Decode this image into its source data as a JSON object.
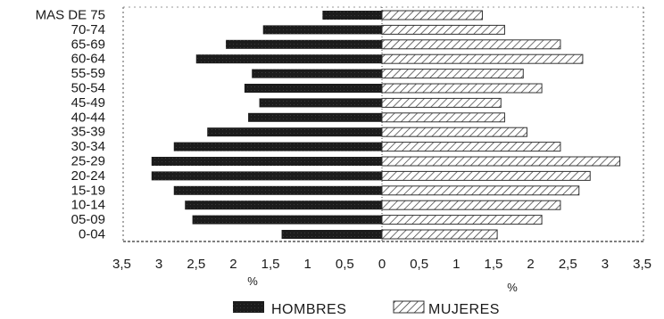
{
  "chart_data": {
    "type": "bar",
    "orientation": "horizontal",
    "categories": [
      "MAS DE 75",
      "70-74",
      "65-69",
      "60-64",
      "55-59",
      "50-54",
      "45-49",
      "40-44",
      "35-39",
      "30-34",
      "25-29",
      "20-24",
      "15-19",
      "10-14",
      "05-09",
      "0-04"
    ],
    "series": [
      {
        "name": "HOMBRES",
        "side": "left",
        "color": "#1c1c1c",
        "values": [
          0.8,
          1.6,
          2.1,
          2.5,
          1.75,
          1.85,
          1.65,
          1.8,
          2.35,
          2.8,
          3.1,
          3.1,
          2.8,
          2.65,
          2.55,
          1.35
        ]
      },
      {
        "name": "MUJERES",
        "side": "right",
        "color": "#1c1c1c",
        "values": [
          1.35,
          1.65,
          2.4,
          2.7,
          1.9,
          2.15,
          1.6,
          1.65,
          1.95,
          2.4,
          3.2,
          2.8,
          2.65,
          2.4,
          2.15,
          1.55
        ]
      }
    ],
    "xlim": [
      -3.5,
      3.5
    ],
    "x_ticks": [
      "3,5",
      "3",
      "2,5",
      "2",
      "1,5",
      "1",
      "0,5",
      "0",
      "0,5",
      "1",
      "1,5",
      "2",
      "2,5",
      "3",
      "3,5"
    ],
    "left_unit": "%",
    "right_unit": "%",
    "grid": false,
    "legend_position": "bottom-center"
  }
}
